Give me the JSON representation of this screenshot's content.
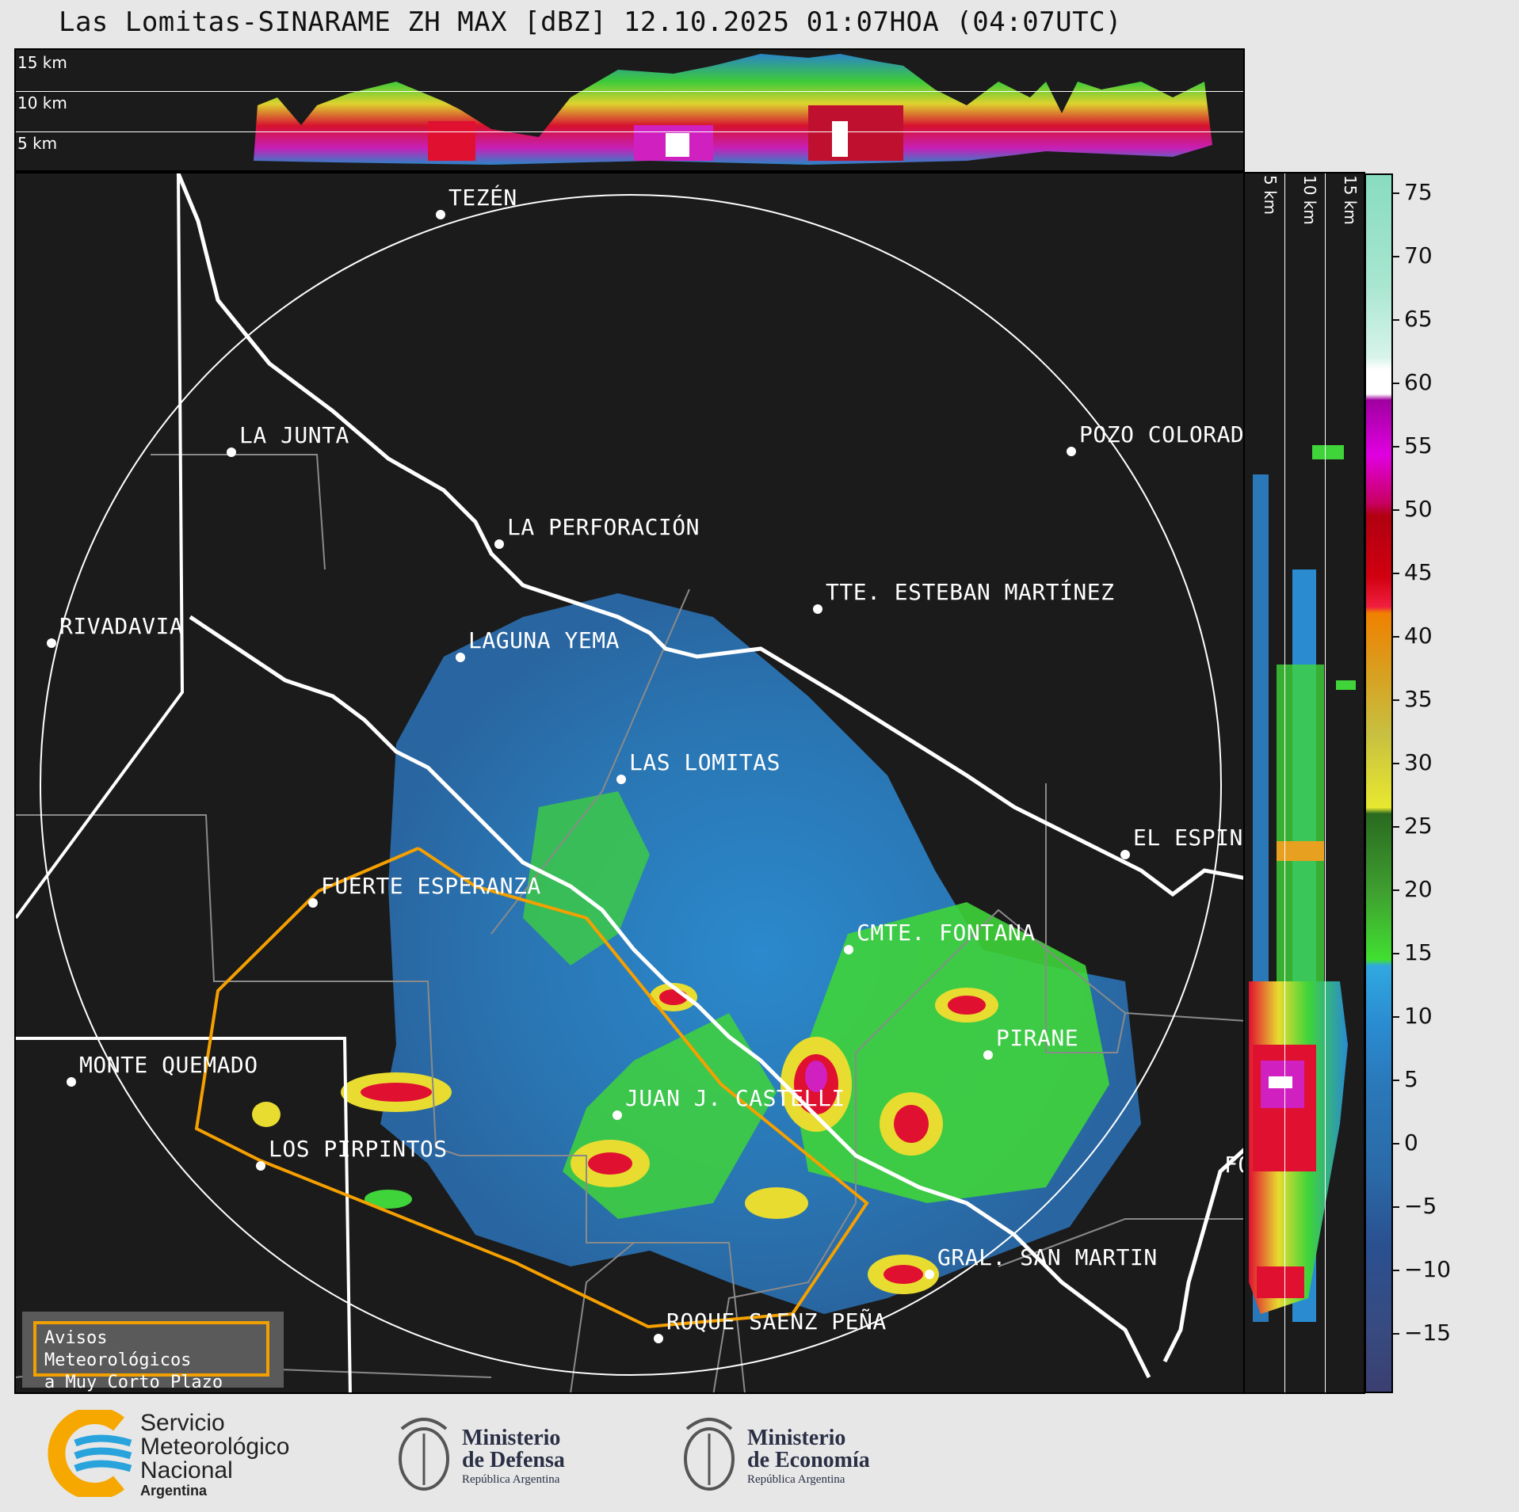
{
  "title": "Las Lomitas-SINARAME ZH MAX [dBZ] 12.10.2025 01:07HOA (04:07UTC)",
  "top_panel": {
    "height_labels": [
      "15 km",
      "10 km",
      "5 km"
    ]
  },
  "side_panel": {
    "height_labels": [
      "5 km",
      "10 km",
      "15 km"
    ]
  },
  "map": {
    "cities": [
      {
        "name": "TEZÉN"
      },
      {
        "name": "LA JUNTA"
      },
      {
        "name": "POZO COLORADO"
      },
      {
        "name": "LA PERFORACIÓN"
      },
      {
        "name": "TTE. ESTEBAN MARTÍNEZ"
      },
      {
        "name": "RIVADAVIA"
      },
      {
        "name": "LAGUNA YEMA"
      },
      {
        "name": "LAS LOMITAS"
      },
      {
        "name": "EL ESPINILLO"
      },
      {
        "name": "FUERTE ESPERANZA"
      },
      {
        "name": "CMTE. FONTANA"
      },
      {
        "name": "PIRANE"
      },
      {
        "name": "MONTE QUEMADO"
      },
      {
        "name": "JUAN J. CASTELLI"
      },
      {
        "name": "LOS PIRPINTOS"
      },
      {
        "name": "GRAL. SAN MARTIN"
      },
      {
        "name": "ROQUE SAENZ PEÑA"
      },
      {
        "name": "FO"
      }
    ],
    "warning_box": {
      "line1": "Avisos Meteorológicos",
      "line2": "a Muy Corto Plazo"
    },
    "colors": {
      "background": "#1b1b1b",
      "range_ring": "#ffffff",
      "borders": "#ffffff",
      "departments": "#8a8a8a",
      "warning_polygon": "#f5a000"
    }
  },
  "colorbar": {
    "unit": "dBZ",
    "min": -19,
    "max": 77,
    "ticks": [
      "75",
      "70",
      "65",
      "60",
      "55",
      "50",
      "45",
      "40",
      "35",
      "30",
      "25",
      "20",
      "15",
      "10",
      "5",
      "0",
      "−5",
      "−10",
      "−15"
    ]
  },
  "logos": {
    "smn": {
      "line1": "Servicio",
      "line2": "Meteorológico",
      "line3": "Nacional",
      "line4": "Argentina"
    },
    "defensa": {
      "line1": "Ministerio",
      "line2": "de Defensa",
      "line3": "República Argentina"
    },
    "economia": {
      "line1": "Ministerio",
      "line2": "de Economía",
      "line3": "República Argentina"
    }
  }
}
